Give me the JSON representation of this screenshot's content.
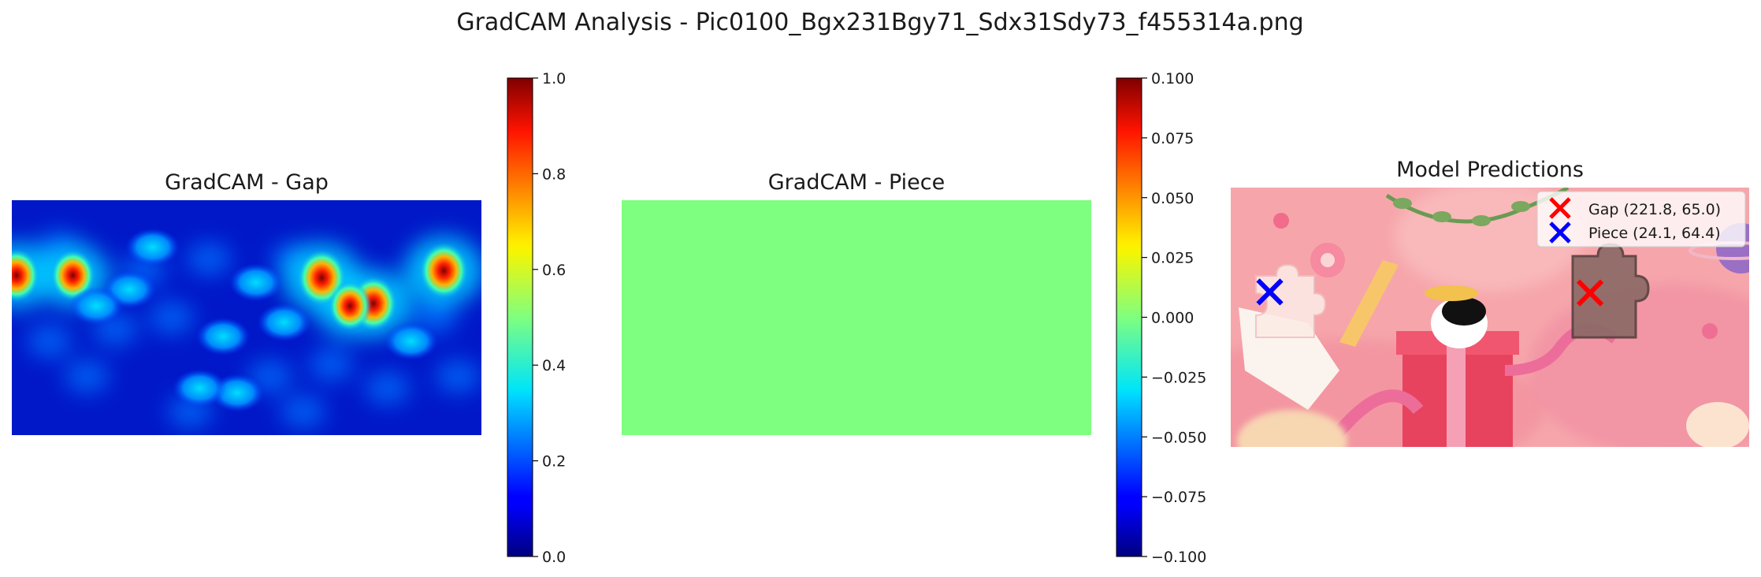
{
  "suptitle": "GradCAM Analysis - Pic0100_Bgx231Bgy71_Sdx31Sdy73_f455314a.png",
  "panels": {
    "gap": {
      "title": "GradCAM - Gap"
    },
    "piece": {
      "title": "GradCAM - Piece"
    },
    "predictions": {
      "title": "Model Predictions"
    }
  },
  "colors": {
    "gap_marker": "#ff0000",
    "piece_marker": "#0000ff",
    "uniform_heatmap": "#7fff7f"
  },
  "chart_data": [
    {
      "type": "heatmap",
      "title": "GradCAM - Gap",
      "colormap": "jet",
      "colorbar": {
        "range": [
          0.0,
          1.0
        ],
        "ticks": [
          0.0,
          0.2,
          0.4,
          0.6,
          0.8,
          1.0
        ],
        "tick_labels": [
          "0.0",
          "0.2",
          "0.4",
          "0.6",
          "0.8",
          "1.0"
        ]
      },
      "hotspots": [
        {
          "x": 0.01,
          "y": 0.32,
          "value": 0.85
        },
        {
          "x": 0.66,
          "y": 0.33,
          "value": 0.95
        },
        {
          "x": 0.77,
          "y": 0.44,
          "value": 0.9
        },
        {
          "x": 0.92,
          "y": 0.3,
          "value": 0.95
        },
        {
          "x": 0.13,
          "y": 0.32,
          "value": 0.8
        },
        {
          "x": 0.72,
          "y": 0.45,
          "value": 0.75
        },
        {
          "x": 0.25,
          "y": 0.38,
          "value": 0.45
        },
        {
          "x": 0.45,
          "y": 0.58,
          "value": 0.45
        },
        {
          "x": 0.48,
          "y": 0.82,
          "value": 0.5
        },
        {
          "x": 0.4,
          "y": 0.8,
          "value": 0.45
        },
        {
          "x": 0.18,
          "y": 0.45,
          "value": 0.4
        },
        {
          "x": 0.58,
          "y": 0.52,
          "value": 0.4
        },
        {
          "x": 0.3,
          "y": 0.2,
          "value": 0.35
        },
        {
          "x": 0.52,
          "y": 0.35,
          "value": 0.35
        },
        {
          "x": 0.85,
          "y": 0.6,
          "value": 0.35
        }
      ]
    },
    {
      "type": "heatmap",
      "title": "GradCAM - Piece",
      "colormap": "jet",
      "uniform_value": 0.0,
      "colorbar": {
        "range": [
          -0.1,
          0.1
        ],
        "ticks": [
          -0.1,
          -0.075,
          -0.05,
          -0.025,
          0.0,
          0.025,
          0.05,
          0.075,
          0.1
        ],
        "tick_labels": [
          "−0.100",
          "−0.075",
          "−0.050",
          "−0.025",
          "0.000",
          "0.025",
          "0.050",
          "0.075",
          "0.100"
        ]
      }
    },
    {
      "type": "scatter",
      "title": "Model Predictions",
      "image_size": [
        320,
        160
      ],
      "series": [
        {
          "name": "Gap (221.8, 65.0)",
          "marker": "x",
          "color": "#ff0000",
          "x": [
            221.8
          ],
          "y": [
            65.0
          ]
        },
        {
          "name": "Piece (24.1, 64.4)",
          "marker": "x",
          "color": "#0000ff",
          "x": [
            24.1
          ],
          "y": [
            64.4
          ]
        }
      ],
      "legend": "top-right"
    }
  ]
}
